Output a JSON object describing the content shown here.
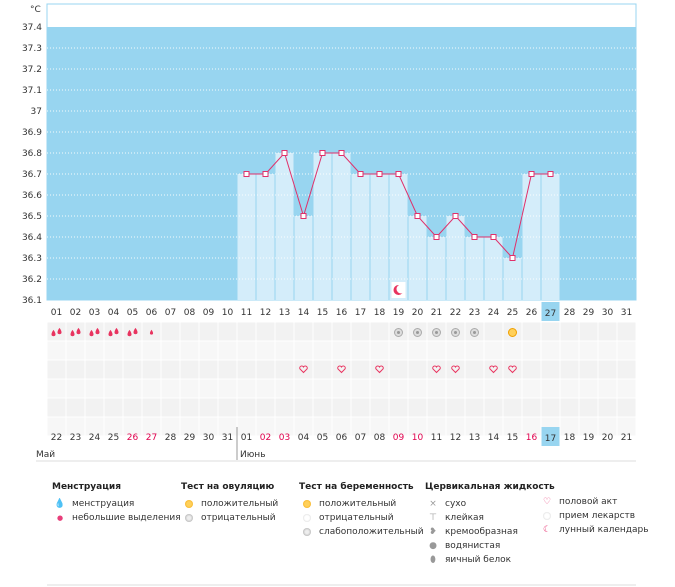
{
  "chart_data": {
    "type": "line",
    "title": "",
    "unit_label": "°C",
    "ylim": [
      36.1,
      37.4
    ],
    "y_ticks": [
      "36.1",
      "36.2",
      "36.3",
      "36.4",
      "36.5",
      "36.6",
      "36.7",
      "36.8",
      "36.9",
      "37",
      "37.1",
      "37.2",
      "37.3",
      "37.4"
    ],
    "cycle_days": [
      "01",
      "02",
      "03",
      "04",
      "05",
      "06",
      "07",
      "08",
      "09",
      "10",
      "11",
      "12",
      "13",
      "14",
      "15",
      "16",
      "17",
      "18",
      "19",
      "20",
      "21",
      "22",
      "23",
      "24",
      "25",
      "26",
      "27",
      "28",
      "29",
      "30",
      "31"
    ],
    "calendar_days": [
      "22",
      "23",
      "24",
      "25",
      "26",
      "27",
      "28",
      "29",
      "30",
      "31",
      "01",
      "02",
      "03",
      "04",
      "05",
      "06",
      "07",
      "08",
      "09",
      "10",
      "11",
      "12",
      "13",
      "14",
      "15",
      "16",
      "17",
      "18",
      "19",
      "20",
      "21"
    ],
    "weekend_calendar_days": [
      4,
      5,
      11,
      12,
      18,
      19,
      25,
      26
    ],
    "today_index": 26,
    "month_labels": [
      {
        "label": "Май",
        "index": 0
      },
      {
        "label": "Июнь",
        "index": 10
      }
    ],
    "temperature": [
      {
        "day": 11,
        "value": 36.7
      },
      {
        "day": 12,
        "value": 36.7
      },
      {
        "day": 13,
        "value": 36.8
      },
      {
        "day": 14,
        "value": 36.5
      },
      {
        "day": 15,
        "value": 36.8
      },
      {
        "day": 16,
        "value": 36.8
      },
      {
        "day": 17,
        "value": 36.7
      },
      {
        "day": 18,
        "value": 36.7
      },
      {
        "day": 19,
        "value": 36.7
      },
      {
        "day": 20,
        "value": 36.5
      },
      {
        "day": 21,
        "value": 36.4
      },
      {
        "day": 22,
        "value": 36.5
      },
      {
        "day": 23,
        "value": 36.4
      },
      {
        "day": 24,
        "value": 36.4
      },
      {
        "day": 25,
        "value": 36.3
      },
      {
        "day": 26,
        "value": 36.7
      },
      {
        "day": 27,
        "value": 36.7
      }
    ],
    "menstruation_days": [
      1,
      2,
      3,
      4,
      5
    ],
    "light_spotting_days": [
      6
    ],
    "ovulation_negative_days": [
      19,
      20,
      21,
      22,
      23
    ],
    "ovulation_positive_days": [
      25
    ],
    "intercourse_days": [
      14,
      16,
      18,
      21,
      22,
      24,
      25
    ],
    "lunar_days": [
      19
    ]
  },
  "legend": {
    "menstruation": {
      "title": "Менструация",
      "items": [
        "менструация",
        "небольшие выделения"
      ]
    },
    "ovulation": {
      "title": "Тест на овуляцию",
      "items": [
        "положительный",
        "отрицательный"
      ]
    },
    "pregnancy": {
      "title": "Тест на беременность",
      "items": [
        "положительный",
        "отрицательный",
        "слабоположительный"
      ]
    },
    "cervical": {
      "title": "Цервикальная жидкость",
      "items": [
        "сухо",
        "клейкая",
        "кремообразная",
        "водянистая",
        "яичный белок"
      ]
    },
    "other": {
      "items": [
        "половой акт",
        "прием лекарств",
        "лунный календарь"
      ]
    }
  },
  "colors": {
    "plot_bg": "#98d5f0",
    "bar": "#d4edfa",
    "line": "#e0306a",
    "today": "#98d5f0",
    "accent_text": "#e0004d"
  }
}
